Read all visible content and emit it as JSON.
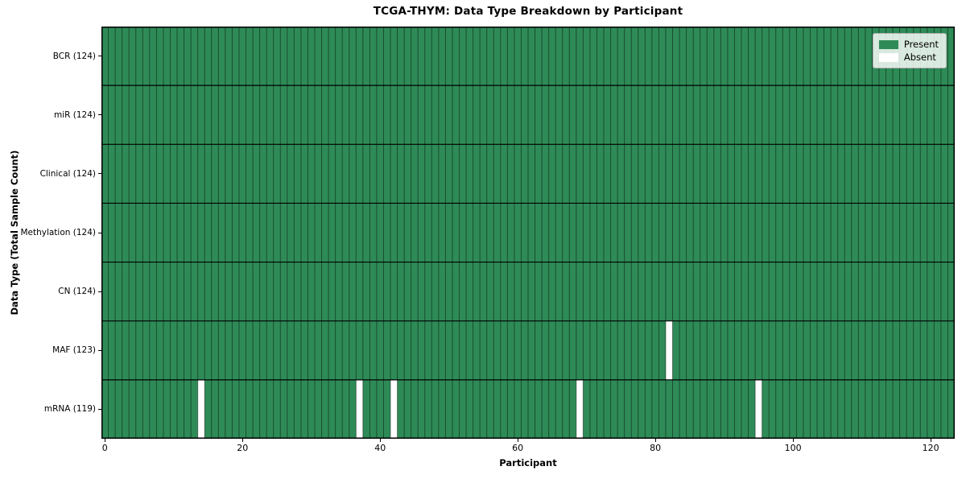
{
  "chart_data": {
    "type": "heatmap",
    "title": "TCGA-THYM: Data Type Breakdown by Participant",
    "xlabel": "Participant",
    "ylabel": "Data Type (Total Sample Count)",
    "n_participants": 124,
    "x_ticks": [
      0,
      20,
      40,
      60,
      80,
      100,
      120
    ],
    "grid": true,
    "legend_position": "upper right",
    "rows": [
      {
        "label": "BCR (124)",
        "data_type": "BCR",
        "present_count": 124,
        "absent_participants": []
      },
      {
        "label": "miR (124)",
        "data_type": "miR",
        "present_count": 124,
        "absent_participants": []
      },
      {
        "label": "Clinical (124)",
        "data_type": "Clinical",
        "present_count": 124,
        "absent_participants": []
      },
      {
        "label": "Methylation (124)",
        "data_type": "Methylation",
        "present_count": 124,
        "absent_participants": []
      },
      {
        "label": "CN (124)",
        "data_type": "CN",
        "present_count": 124,
        "absent_participants": []
      },
      {
        "label": "MAF (123)",
        "data_type": "MAF",
        "present_count": 123,
        "absent_participants": [
          82
        ]
      },
      {
        "label": "mRNA (119)",
        "data_type": "mRNA",
        "present_count": 119,
        "absent_participants": [
          14,
          37,
          42,
          69,
          95
        ]
      }
    ],
    "legend": [
      {
        "label": "Present",
        "color": "#2e8b57"
      },
      {
        "label": "Absent",
        "color": "#ffffff"
      }
    ],
    "colors": {
      "present": "#2e8b57",
      "absent": "#ffffff",
      "cell_edge": "rgba(0,0,0,0.45)",
      "row_separator": "#000000",
      "plot_border": "#000000",
      "background": "#ffffff"
    }
  }
}
